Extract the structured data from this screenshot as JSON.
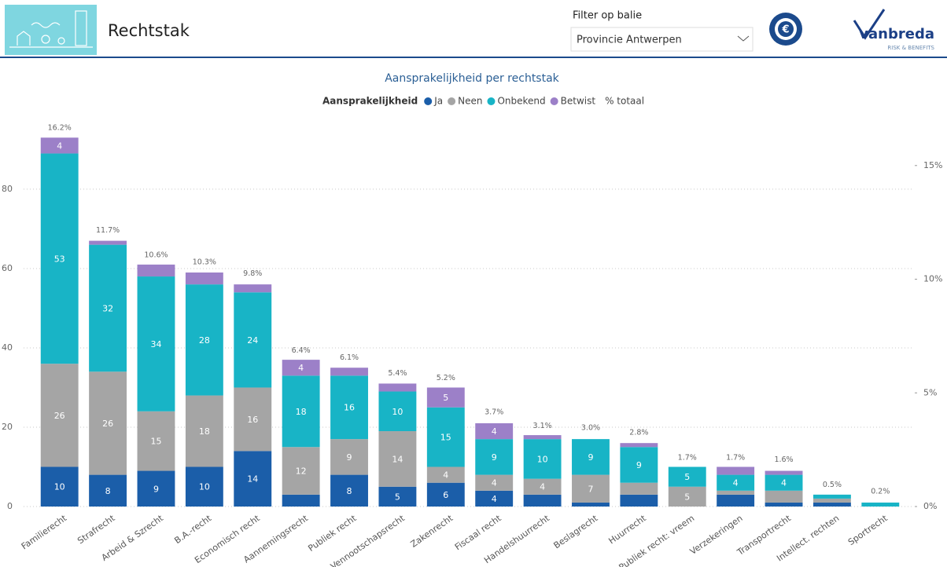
{
  "header": {
    "title": "Rechtstak",
    "filter_label": "Filter op balie",
    "filter_value": "Provincie Antwerpen",
    "logo_text": "vanbreda",
    "logo_subtext": "RISK & BENEFITS"
  },
  "chart_data": {
    "type": "bar",
    "stacked": true,
    "title": "Aansprakelijkheid per rechtstak",
    "legend_title": "Aansprakelijkheid",
    "categories": [
      "Familierecht",
      "Strafrecht",
      "Arbeid & Szrecht",
      "B.A.-recht",
      "Economisch recht",
      "Aannemingsrecht",
      "Publiek recht",
      "Vennootschapsrecht",
      "Zakenrecht",
      "Fiscaal recht",
      "Handelshuurrecht",
      "Beslagrecht",
      "Huurrecht",
      "Publiek recht: vreem",
      "Verzekeringen",
      "Transportrecht",
      "Intellect. rechten",
      "Sportrecht"
    ],
    "series": [
      {
        "name": "Ja",
        "color": "#1b5ea9",
        "values": [
          10,
          8,
          9,
          10,
          14,
          3,
          8,
          5,
          6,
          4,
          3,
          1,
          3,
          0,
          3,
          1,
          1,
          0
        ]
      },
      {
        "name": "Neen",
        "color": "#a5a5a5",
        "values": [
          26,
          26,
          15,
          18,
          16,
          12,
          9,
          14,
          4,
          4,
          4,
          7,
          3,
          5,
          1,
          3,
          1,
          0
        ]
      },
      {
        "name": "Onbekend",
        "color": "#18b4c6",
        "values": [
          53,
          32,
          34,
          28,
          24,
          18,
          16,
          10,
          15,
          9,
          10,
          9,
          9,
          5,
          4,
          4,
          1,
          1
        ]
      },
      {
        "name": "Betwist",
        "color": "#9c80c8",
        "values": [
          4,
          1,
          3,
          3,
          2,
          4,
          2,
          2,
          5,
          4,
          1,
          0,
          1,
          0,
          2,
          1,
          0,
          0
        ]
      },
      {
        "name": "% totaal",
        "axis": "y2",
        "values": [
          16.2,
          11.7,
          10.6,
          10.3,
          9.8,
          6.4,
          6.1,
          5.4,
          5.2,
          3.7,
          3.1,
          3.0,
          2.8,
          1.7,
          1.7,
          1.6,
          0.5,
          0.2
        ],
        "value_labels": [
          "16.2%",
          "11.7%",
          "10.6%",
          "10.3%",
          "9.8%",
          "6.4%",
          "6.1%",
          "5.4%",
          "5.2%",
          "3.7%",
          "3.1%",
          "3.0%",
          "2.8%",
          "1.7%",
          "1.7%",
          "1.6%",
          "0.5%",
          "0.2%"
        ]
      }
    ],
    "ylim": [
      0,
      98
    ],
    "yticks": [
      0,
      20,
      40,
      60,
      80
    ],
    "y2lim": [
      0,
      17.1
    ],
    "y2ticks": [
      {
        "value": 0,
        "label": "0%"
      },
      {
        "value": 5,
        "label": "5%"
      },
      {
        "value": 10,
        "label": "10%"
      },
      {
        "value": 15,
        "label": "15%"
      }
    ],
    "grid": true
  }
}
